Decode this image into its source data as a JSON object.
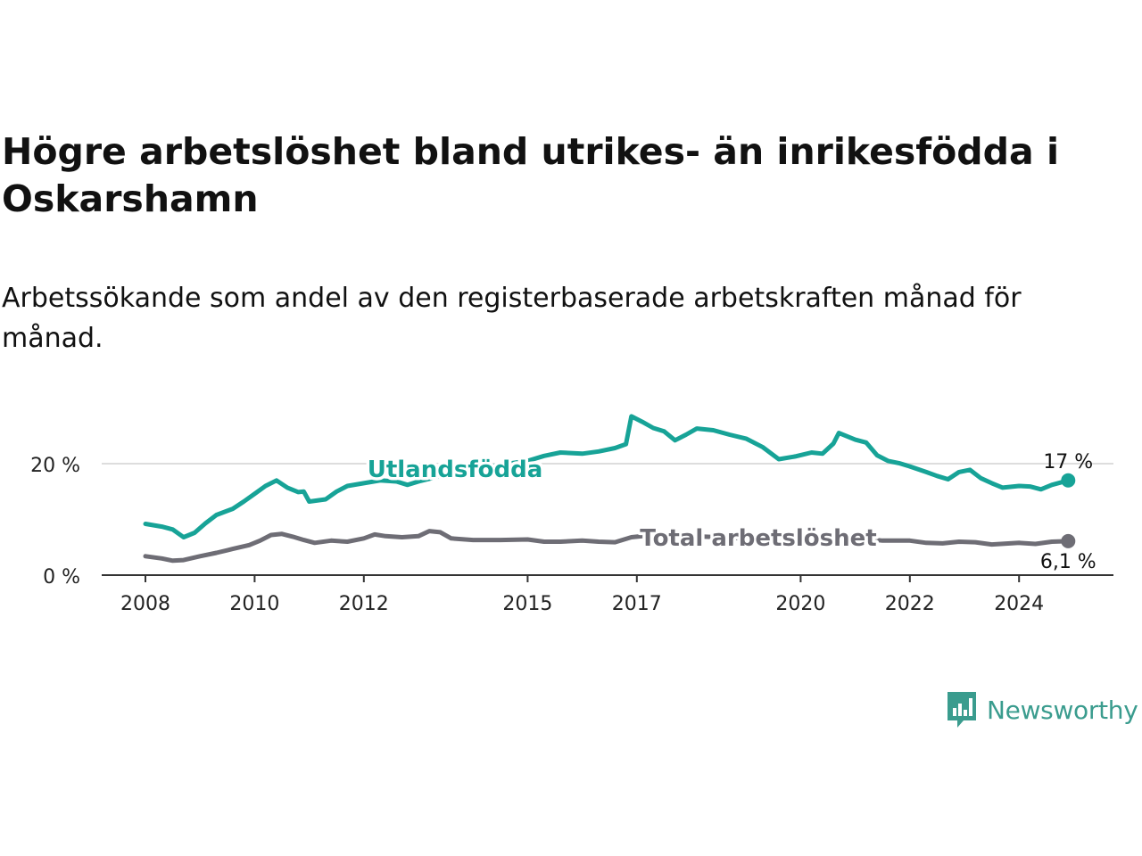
{
  "title": "Högre arbetslöshet bland utrikes- än inrikesfödda i Oskarshamn",
  "subtitle": "Arbetssökande som andel av den registerbaserade arbetskraften månad för månad.",
  "brand": {
    "name": "Newsworthy",
    "color": "#3a9c8e"
  },
  "chart_data": {
    "type": "line",
    "x_ticks": [
      "2008",
      "2010",
      "2012",
      "2015",
      "2017",
      "2020",
      "2022",
      "2024"
    ],
    "y_ticks": [
      {
        "value": 0,
        "label": "0 %"
      },
      {
        "value": 20,
        "label": "20 %"
      }
    ],
    "ylim": [
      0,
      30
    ],
    "xlim": [
      2007.8,
      2025.2
    ],
    "grid": "horizontal",
    "series": [
      {
        "name": "Utlandsfödda",
        "color": "#17a397",
        "end_label": "17 %",
        "points": [
          [
            2008.0,
            9.2
          ],
          [
            2008.3,
            8.7
          ],
          [
            2008.5,
            8.2
          ],
          [
            2008.7,
            6.8
          ],
          [
            2008.9,
            7.6
          ],
          [
            2009.1,
            9.3
          ],
          [
            2009.3,
            10.8
          ],
          [
            2009.6,
            11.9
          ],
          [
            2009.8,
            13.2
          ],
          [
            2010.0,
            14.6
          ],
          [
            2010.2,
            16.0
          ],
          [
            2010.4,
            17.0
          ],
          [
            2010.6,
            15.7
          ],
          [
            2010.8,
            14.9
          ],
          [
            2010.9,
            15.0
          ],
          [
            2011.0,
            13.2
          ],
          [
            2011.3,
            13.6
          ],
          [
            2011.5,
            15.0
          ],
          [
            2011.7,
            16.0
          ],
          [
            2012.0,
            16.5
          ],
          [
            2012.3,
            17.0
          ],
          [
            2012.6,
            16.8
          ],
          [
            2012.8,
            16.2
          ],
          [
            2013.0,
            16.8
          ],
          [
            2013.5,
            18.0
          ],
          [
            2014.0,
            19.0
          ],
          [
            2014.5,
            19.8
          ],
          [
            2015.0,
            20.5
          ],
          [
            2015.3,
            21.4
          ],
          [
            2015.6,
            22.0
          ],
          [
            2016.0,
            21.8
          ],
          [
            2016.3,
            22.2
          ],
          [
            2016.6,
            22.8
          ],
          [
            2016.8,
            23.5
          ],
          [
            2016.9,
            28.5
          ],
          [
            2017.1,
            27.5
          ],
          [
            2017.3,
            26.4
          ],
          [
            2017.5,
            25.8
          ],
          [
            2017.7,
            24.2
          ],
          [
            2017.9,
            25.2
          ],
          [
            2018.1,
            26.3
          ],
          [
            2018.4,
            26.0
          ],
          [
            2018.7,
            25.2
          ],
          [
            2019.0,
            24.5
          ],
          [
            2019.3,
            23.0
          ],
          [
            2019.6,
            20.8
          ],
          [
            2019.9,
            21.3
          ],
          [
            2020.2,
            22.0
          ],
          [
            2020.4,
            21.8
          ],
          [
            2020.6,
            23.6
          ],
          [
            2020.7,
            25.5
          ],
          [
            2021.0,
            24.3
          ],
          [
            2021.2,
            23.8
          ],
          [
            2021.4,
            21.5
          ],
          [
            2021.6,
            20.5
          ],
          [
            2021.8,
            20.1
          ],
          [
            2022.0,
            19.5
          ],
          [
            2022.3,
            18.5
          ],
          [
            2022.5,
            17.8
          ],
          [
            2022.7,
            17.2
          ],
          [
            2022.9,
            18.5
          ],
          [
            2023.1,
            18.9
          ],
          [
            2023.3,
            17.4
          ],
          [
            2023.5,
            16.5
          ],
          [
            2023.7,
            15.7
          ],
          [
            2024.0,
            16.0
          ],
          [
            2024.2,
            15.9
          ],
          [
            2024.4,
            15.4
          ],
          [
            2024.6,
            16.2
          ],
          [
            2024.9,
            17.0
          ]
        ]
      },
      {
        "name": "Total arbetslöshet",
        "color": "#6e6d75",
        "end_label": "6,1 %",
        "points": [
          [
            2008.0,
            3.4
          ],
          [
            2008.3,
            3.0
          ],
          [
            2008.5,
            2.6
          ],
          [
            2008.7,
            2.7
          ],
          [
            2009.0,
            3.4
          ],
          [
            2009.3,
            4.0
          ],
          [
            2009.6,
            4.7
          ],
          [
            2009.9,
            5.4
          ],
          [
            2010.1,
            6.2
          ],
          [
            2010.3,
            7.2
          ],
          [
            2010.5,
            7.4
          ],
          [
            2010.7,
            6.9
          ],
          [
            2010.9,
            6.3
          ],
          [
            2011.1,
            5.8
          ],
          [
            2011.4,
            6.2
          ],
          [
            2011.7,
            6.0
          ],
          [
            2012.0,
            6.6
          ],
          [
            2012.2,
            7.3
          ],
          [
            2012.4,
            7.0
          ],
          [
            2012.7,
            6.8
          ],
          [
            2013.0,
            7.0
          ],
          [
            2013.2,
            7.9
          ],
          [
            2013.4,
            7.7
          ],
          [
            2013.6,
            6.6
          ],
          [
            2014.0,
            6.3
          ],
          [
            2014.5,
            6.3
          ],
          [
            2015.0,
            6.4
          ],
          [
            2015.3,
            6.0
          ],
          [
            2015.6,
            6.0
          ],
          [
            2016.0,
            6.2
          ],
          [
            2016.3,
            6.0
          ],
          [
            2016.6,
            5.9
          ],
          [
            2016.9,
            6.8
          ],
          [
            2017.2,
            7.1
          ],
          [
            2017.6,
            7.3
          ],
          [
            2018.0,
            7.0
          ],
          [
            2018.5,
            6.8
          ],
          [
            2019.0,
            6.6
          ],
          [
            2019.5,
            6.4
          ],
          [
            2020.0,
            6.8
          ],
          [
            2020.5,
            6.9
          ],
          [
            2021.0,
            6.7
          ],
          [
            2021.5,
            6.2
          ],
          [
            2022.0,
            6.2
          ],
          [
            2022.3,
            5.8
          ],
          [
            2022.6,
            5.7
          ],
          [
            2022.9,
            6.0
          ],
          [
            2023.2,
            5.9
          ],
          [
            2023.5,
            5.5
          ],
          [
            2024.0,
            5.8
          ],
          [
            2024.3,
            5.6
          ],
          [
            2024.6,
            6.0
          ],
          [
            2024.9,
            6.1
          ]
        ]
      }
    ]
  }
}
